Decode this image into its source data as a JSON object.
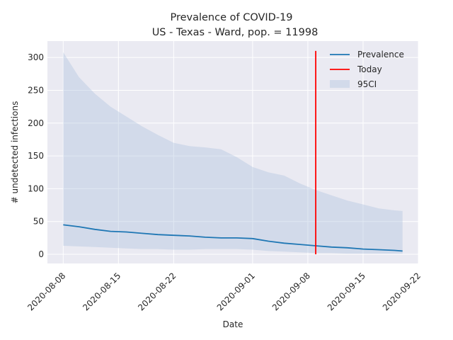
{
  "chart_data": {
    "type": "line",
    "title": "Prevalence of COVID-19",
    "subtitle": "US - Texas - Ward, pop. = 11998",
    "xlabel": "Date",
    "ylabel": "# undetected infections",
    "x_ticks": [
      "2020-08-08",
      "2020-08-15",
      "2020-08-22",
      "2020-09-01",
      "2020-09-08",
      "2020-09-15",
      "2020-09-22"
    ],
    "y_ticks": [
      0,
      50,
      100,
      150,
      200,
      250,
      300
    ],
    "xlim": [
      "2020-08-06",
      "2020-09-22"
    ],
    "ylim": [
      -14,
      325
    ],
    "grid": true,
    "legend_position": "top-right",
    "colors": {
      "prevalence": "#1f77b4",
      "today": "#ff0000",
      "ci": "#b0c4de",
      "background": "#eaeaf2"
    },
    "series": [
      {
        "name": "Prevalence",
        "x": [
          "2020-08-08",
          "2020-08-10",
          "2020-08-12",
          "2020-08-14",
          "2020-08-16",
          "2020-08-18",
          "2020-08-20",
          "2020-08-22",
          "2020-08-24",
          "2020-08-26",
          "2020-08-28",
          "2020-08-30",
          "2020-09-01",
          "2020-09-03",
          "2020-09-05",
          "2020-09-07",
          "2020-09-09",
          "2020-09-11",
          "2020-09-13",
          "2020-09-15",
          "2020-09-17",
          "2020-09-19",
          "2020-09-20"
        ],
        "values": [
          45,
          42,
          38,
          35,
          34,
          32,
          30,
          29,
          28,
          26,
          25,
          25,
          24,
          20,
          17,
          15,
          13,
          11,
          10,
          8,
          7,
          6,
          5
        ]
      },
      {
        "name": "95CI",
        "x": [
          "2020-08-08",
          "2020-08-10",
          "2020-08-12",
          "2020-08-14",
          "2020-08-16",
          "2020-08-18",
          "2020-08-20",
          "2020-08-22",
          "2020-08-24",
          "2020-08-26",
          "2020-08-28",
          "2020-08-30",
          "2020-09-01",
          "2020-09-03",
          "2020-09-05",
          "2020-09-07",
          "2020-09-09",
          "2020-09-11",
          "2020-09-13",
          "2020-09-15",
          "2020-09-17",
          "2020-09-19",
          "2020-09-20"
        ],
        "lower": [
          13,
          12,
          11,
          10,
          9,
          8,
          8,
          7,
          7,
          8,
          8,
          8,
          7,
          5,
          4,
          3,
          2,
          2,
          1,
          1,
          1,
          1,
          1
        ],
        "upper": [
          308,
          270,
          245,
          225,
          210,
          195,
          182,
          170,
          165,
          163,
          160,
          148,
          133,
          125,
          120,
          108,
          98,
          90,
          82,
          76,
          70,
          67,
          66
        ]
      }
    ],
    "today": {
      "name": "Today",
      "date": "2020-09-09",
      "y_range": [
        0,
        310
      ]
    }
  }
}
